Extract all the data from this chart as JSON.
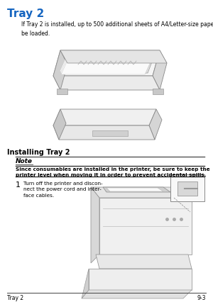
{
  "title": "Tray 2",
  "title_color": "#1565C0",
  "title_fontsize": 11,
  "body_text": "If Tray 2 is installed, up to 500 additional sheets of A4/Letter-size paper can\nbe loaded.",
  "body_fontsize": 5.5,
  "section_title": "Installing Tray 2",
  "section_fontsize": 7.0,
  "note_label": "Note",
  "note_label_fontsize": 6.5,
  "note_bold_text": "Since consumables are installed in the printer, be sure to keep the\nprinter level when moving it in order to prevent accidental spills.",
  "note_fontsize": 5.2,
  "step_number": "1",
  "step_text": "Turn off the printer and discon-\nnect the power cord and inter-\nface cables.",
  "step_fontsize": 5.2,
  "footer_left": "Tray 2",
  "footer_right": "9-3",
  "footer_fontsize": 5.5,
  "bg_color": "#ffffff",
  "text_color": "#000000"
}
